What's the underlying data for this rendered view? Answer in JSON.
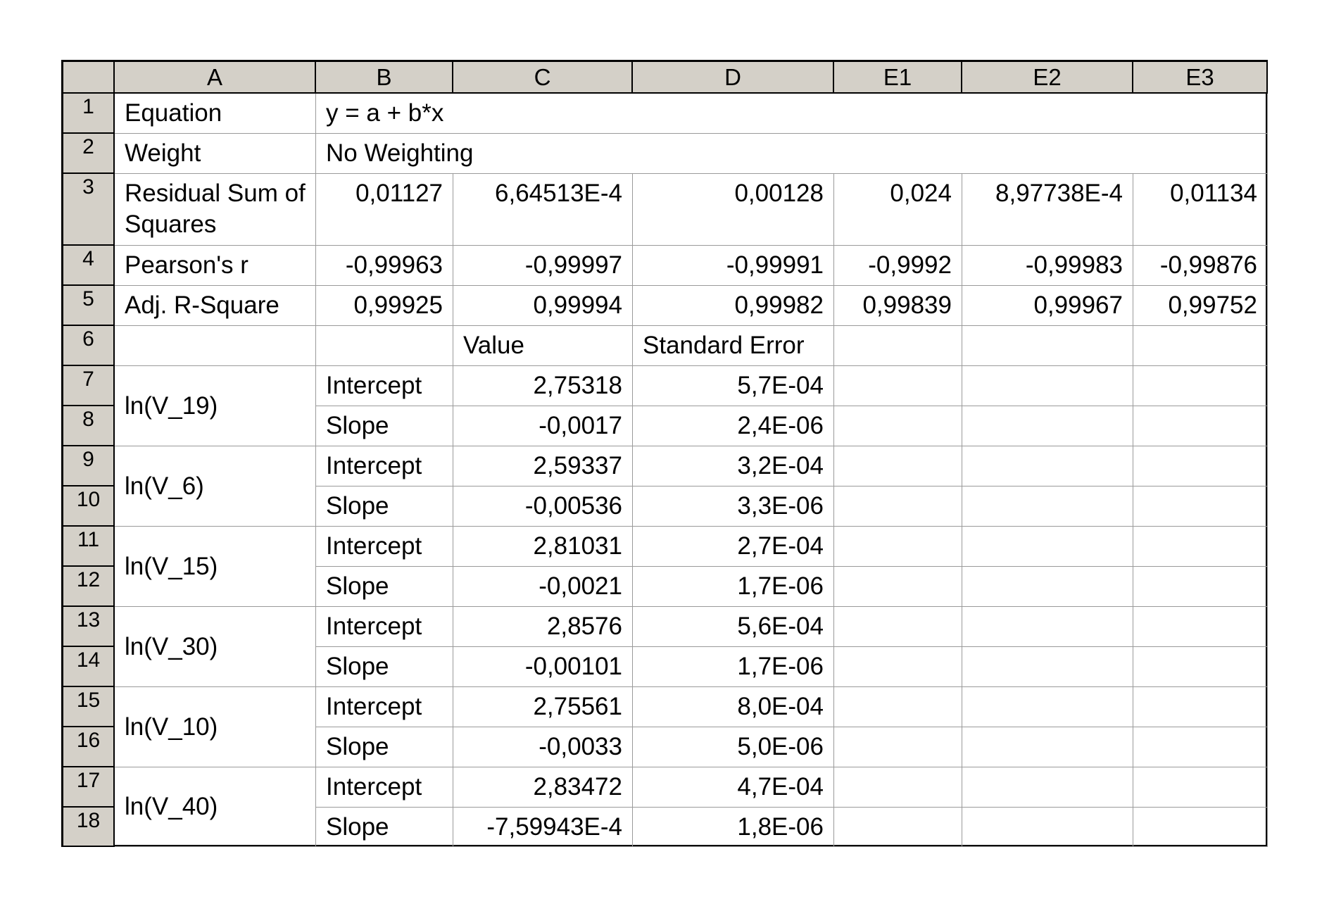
{
  "columns": [
    "A",
    "B",
    "C",
    "D",
    "E1",
    "E2",
    "E3"
  ],
  "rows": [
    "1",
    "2",
    "3",
    "4",
    "5",
    "6",
    "7",
    "8",
    "9",
    "10",
    "11",
    "12",
    "13",
    "14",
    "15",
    "16",
    "17",
    "18"
  ],
  "equation": {
    "label": "Equation",
    "value": "y = a + b*x"
  },
  "weight": {
    "label": "Weight",
    "value": "No Weighting"
  },
  "rss": {
    "label": "Residual Sum of Squares",
    "values": [
      "0,01127",
      "6,64513E-4",
      "0,00128",
      "0,024",
      "8,97738E-4",
      "0,01134"
    ]
  },
  "pearson": {
    "label": "Pearson's r",
    "values": [
      "-0,99963",
      "-0,99997",
      "-0,99991",
      "-0,9992",
      "-0,99983",
      "-0,99876"
    ]
  },
  "adjr2": {
    "label": "Adj. R-Square",
    "values": [
      "0,99925",
      "0,99994",
      "0,99982",
      "0,99839",
      "0,99967",
      "0,99752"
    ]
  },
  "params_header": {
    "value": "Value",
    "stderr": "Standard Error"
  },
  "groups": [
    {
      "name": "ln(V_19)",
      "rows": [
        {
          "param": "Intercept",
          "value": "2,75318",
          "stderr": "5,7E-04"
        },
        {
          "param": "Slope",
          "value": "-0,0017",
          "stderr": "2,4E-06"
        }
      ]
    },
    {
      "name": "ln(V_6)",
      "rows": [
        {
          "param": "Intercept",
          "value": "2,59337",
          "stderr": "3,2E-04"
        },
        {
          "param": "Slope",
          "value": "-0,00536",
          "stderr": "3,3E-06"
        }
      ]
    },
    {
      "name": "ln(V_15)",
      "rows": [
        {
          "param": "Intercept",
          "value": "2,81031",
          "stderr": "2,7E-04"
        },
        {
          "param": "Slope",
          "value": "-0,0021",
          "stderr": "1,7E-06"
        }
      ]
    },
    {
      "name": "ln(V_30)",
      "rows": [
        {
          "param": "Intercept",
          "value": "2,8576",
          "stderr": "5,6E-04"
        },
        {
          "param": "Slope",
          "value": "-0,00101",
          "stderr": "1,7E-06"
        }
      ]
    },
    {
      "name": "ln(V_10)",
      "rows": [
        {
          "param": "Intercept",
          "value": "2,75561",
          "stderr": "8,0E-04"
        },
        {
          "param": "Slope",
          "value": "-0,0033",
          "stderr": "5,0E-06"
        }
      ]
    },
    {
      "name": "ln(V_40)",
      "rows": [
        {
          "param": "Intercept",
          "value": "2,83472",
          "stderr": "4,7E-04"
        },
        {
          "param": "Slope",
          "value": "-7,59943E-4",
          "stderr": "1,8E-06"
        }
      ]
    }
  ]
}
